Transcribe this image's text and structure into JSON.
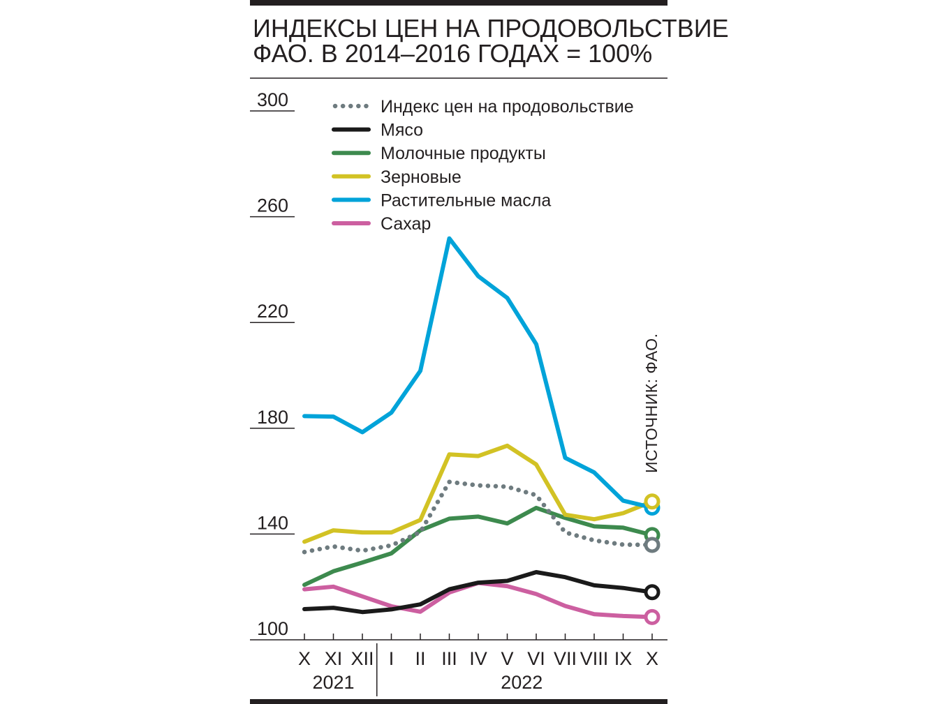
{
  "colors": {
    "text": "#231f20",
    "food": "#6e7b7f",
    "meat": "#1a1a1a",
    "dairy": "#3d8a4e",
    "cereals": "#d2c224",
    "oils": "#00a3d9",
    "sugar": "#cc5fa0"
  },
  "chart_data": {
    "type": "line",
    "title": "ИНДЕКСЫ ЦЕН НА ПРОДОВОЛЬСТВИЕ ФАО. В 2014–2016 ГОДАХ = 100%",
    "title_lines": [
      "ИНДЕКСЫ ЦЕН НА ПРОДОВОЛЬСТВИЕ",
      "ФАО. В 2014–2016 ГОДАХ = 100%"
    ],
    "source": "ИСТОЧНИК: ФАО.",
    "x": [
      "X",
      "XI",
      "XII",
      "I",
      "II",
      "III",
      "IV",
      "V",
      "VI",
      "VII",
      "VIII",
      "IX",
      "X"
    ],
    "years": [
      {
        "label": "2021",
        "start": 0,
        "end": 2
      },
      {
        "label": "2022",
        "start": 3,
        "end": 12
      }
    ],
    "ylim": [
      100,
      300
    ],
    "yticks": [
      100,
      140,
      180,
      220,
      260,
      300
    ],
    "grid": false,
    "legend_position": "top",
    "series": [
      {
        "name": "Индекс цен на продовольствие",
        "key": "food",
        "style": "dotted",
        "values": [
          133.2,
          135.3,
          133.7,
          135.7,
          140.7,
          159.7,
          158.4,
          157.9,
          154.7,
          140.6,
          137.6,
          136.0,
          135.9
        ]
      },
      {
        "name": "Мясо",
        "key": "meat",
        "style": "solid",
        "values": [
          111.6,
          112.1,
          110.5,
          111.5,
          113.4,
          119.1,
          121.6,
          122.3,
          125.6,
          123.7,
          120.6,
          119.6,
          118.0
        ]
      },
      {
        "name": "Молочные продукты",
        "key": "dairy",
        "style": "solid",
        "values": [
          120.8,
          125.9,
          129.2,
          132.7,
          141.4,
          145.8,
          146.6,
          144.0,
          149.9,
          146.1,
          142.9,
          142.4,
          139.6
        ]
      },
      {
        "name": "Зерновые",
        "key": "cereals",
        "style": "solid",
        "values": [
          137.1,
          141.4,
          140.6,
          140.6,
          145.3,
          170.1,
          169.5,
          173.4,
          166.3,
          147.3,
          145.6,
          147.9,
          152.3
        ]
      },
      {
        "name": "Растительные масла",
        "key": "oils",
        "style": "solid",
        "values": [
          184.6,
          184.4,
          178.5,
          185.9,
          201.7,
          251.8,
          237.5,
          229.3,
          211.8,
          168.8,
          163.3,
          152.6,
          150.0
        ]
      },
      {
        "name": "Сахар",
        "key": "sugar",
        "style": "solid",
        "values": [
          119.1,
          120.1,
          116.4,
          112.7,
          110.6,
          117.9,
          121.5,
          120.3,
          117.3,
          112.8,
          109.7,
          109.0,
          108.6
        ]
      }
    ]
  }
}
